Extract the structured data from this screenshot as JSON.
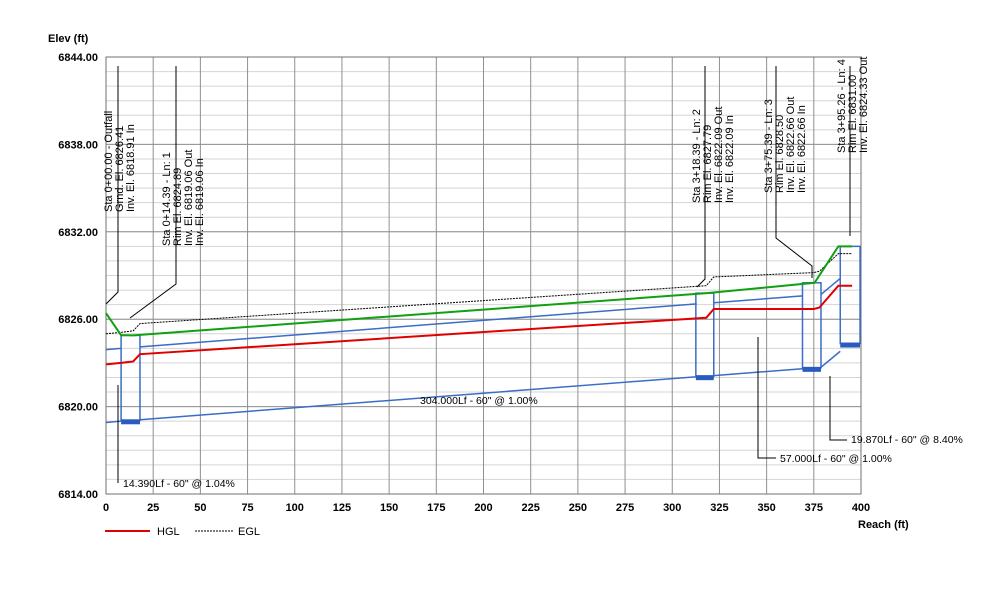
{
  "chart_data": {
    "type": "line",
    "title": "",
    "ylabel": "Elev (ft)",
    "xlabel": "Reach (ft)",
    "xlim": [
      0,
      400
    ],
    "ylim": [
      6814,
      6844
    ],
    "x_ticks": [
      0,
      25,
      50,
      75,
      100,
      125,
      150,
      175,
      200,
      225,
      250,
      275,
      300,
      325,
      350,
      375,
      400
    ],
    "y_ticks": [
      6814,
      6820,
      6826,
      6832,
      6838,
      6844
    ],
    "y_tick_labels": [
      "6814.00",
      "6820.00",
      "6826.00",
      "6832.00",
      "6838.00",
      "6844.00"
    ],
    "grid": true,
    "legend": {
      "position": "bottom-left",
      "entries": [
        "HGL",
        "EGL"
      ]
    },
    "colors": {
      "hgl": "#e00000",
      "egl": "#000000",
      "ground": "#10a010",
      "pipe": "#3a6cc8",
      "sump": "#2a5cc0"
    },
    "series": [
      {
        "name": "HGL",
        "x": [
          0,
          8,
          14.4,
          18,
          318,
          322,
          375,
          378,
          388,
          395.3
        ],
        "y": [
          6822.9,
          6823.0,
          6823.1,
          6823.6,
          6826.1,
          6826.7,
          6826.7,
          6826.8,
          6828.3,
          6828.3
        ]
      },
      {
        "name": "EGL",
        "x": [
          0,
          8,
          14.4,
          18,
          318,
          322,
          375,
          378,
          388,
          395.3
        ],
        "y": [
          6825.0,
          6825.1,
          6825.2,
          6825.7,
          6828.3,
          6828.9,
          6829.2,
          6829.3,
          6830.5,
          6830.5
        ]
      },
      {
        "name": "Ground",
        "x": [
          0,
          8,
          14.4,
          318.4,
          375.4,
          388,
          395.3
        ],
        "y": [
          6826.41,
          6824.9,
          6824.89,
          6827.79,
          6828.5,
          6831.0,
          6831.0
        ]
      }
    ],
    "pipes": [
      {
        "x0": 0,
        "x1": 8,
        "inv0": 6818.91,
        "inv1": 6819.0,
        "dia": 5,
        "label": "14.390Lf - 60\" @ 1.04%"
      },
      {
        "x0": 18,
        "x1": 313,
        "inv0": 6819.1,
        "inv1": 6822.05,
        "dia": 5,
        "label": "304.000Lf - 60\" @ 1.00%"
      },
      {
        "x0": 322,
        "x1": 369,
        "inv0": 6822.13,
        "inv1": 6822.6,
        "dia": 5,
        "label": "57.000Lf - 60\" @ 1.00%"
      },
      {
        "x0": 378.8,
        "x1": 389,
        "inv0": 6822.7,
        "inv1": 6823.8,
        "dia": 5,
        "label": "19.870Lf - 60\" @ 8.40%"
      }
    ],
    "structures": [
      {
        "x0": 8,
        "x1": 18,
        "rim": 6824.89,
        "inv": 6819.06
      },
      {
        "x0": 312.5,
        "x1": 322,
        "rim": 6827.79,
        "inv": 6822.09
      },
      {
        "x0": 369,
        "x1": 378.8,
        "rim": 6828.5,
        "inv": 6822.66
      },
      {
        "x0": 389,
        "x1": 399.5,
        "rim": 6831.0,
        "inv": 6824.33
      }
    ],
    "annotations": [
      {
        "lines": [
          "Sta 0+00.00 - Outfall",
          "Grnd. El. 6826.41",
          "Inv. El. 6818.91 In"
        ]
      },
      {
        "lines": [
          "Sta 0+14.39 - Ln: 1",
          "Rim El. 6824.89",
          "Inv. El. 6819.06 Out",
          "Inv. El. 6819.06 In"
        ]
      },
      {
        "lines": [
          "Sta 3+18.39 - Ln: 2",
          "Rim El. 6827.79",
          "Inv. El. 6822.09 Out",
          "Inv. El. 6822.09 In"
        ]
      },
      {
        "lines": [
          "Sta 3+75.39 - Ln: 3",
          "Rim El. 6828.50",
          "Inv. El. 6822.66 Out",
          "Inv. El. 6822.66 In"
        ]
      },
      {
        "lines": [
          "Sta 3+95.26 - Ln: 4",
          "Rim El. 6831.00",
          "Inv. El. 6824.33 Out"
        ]
      }
    ]
  }
}
